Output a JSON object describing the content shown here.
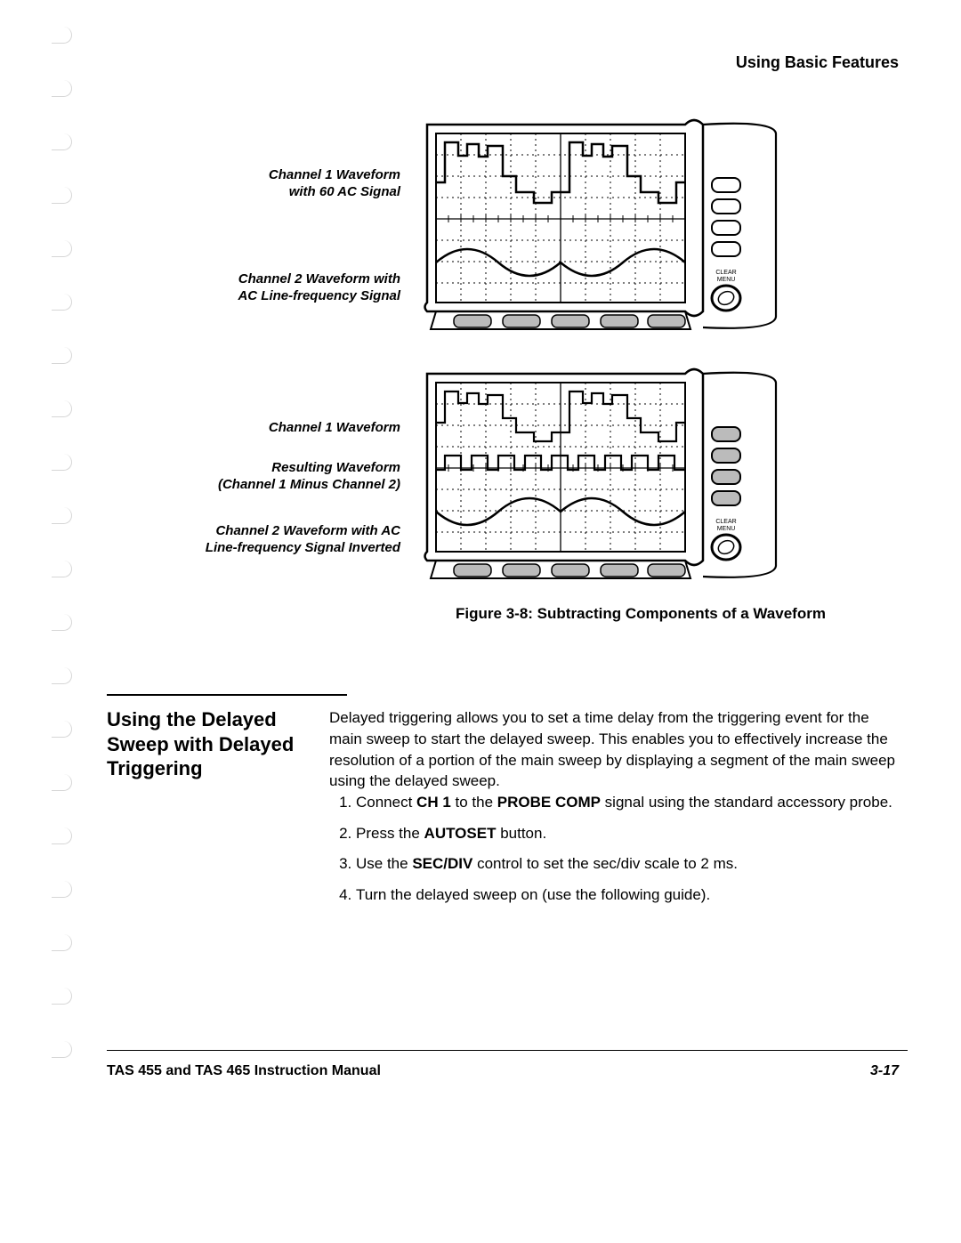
{
  "header": "Using Basic Features",
  "labels": {
    "l1": "Channel 1 Waveform\nwith 60 AC Signal",
    "l2": "Channel 2 Waveform with\nAC Line-frequency Signal",
    "l3": "Channel 1 Waveform",
    "l4": "Resulting Waveform\n(Channel 1 Minus Channel 2)",
    "l5": "Channel 2 Waveform with AC\nLine-frequency Signal Inverted"
  },
  "figure_caption": "Figure 3-8: Subtracting Components of a Waveform",
  "section_title": "Using the Delayed Sweep with Delayed Triggering",
  "paragraph": "Delayed triggering allows you to set a time delay from the triggering event for the main sweep to start the delayed sweep. This enables you to effectively increase the resolution of a portion of the main sweep by displaying a segment of the main sweep using the delayed sweep.",
  "steps": {
    "s1a": "Connect ",
    "s1b": "CH 1",
    "s1c": " to the ",
    "s1d": "PROBE COMP",
    "s1e": " signal using the standard accessory probe.",
    "s2a": "Press the ",
    "s2b": "AUTOSET",
    "s2c": " button.",
    "s3a": "Use the ",
    "s3b": "SEC/DIV",
    "s3c": " control to set the sec/div scale to 2 ms.",
    "s4": "Turn the delayed sweep on (use the following guide)."
  },
  "footer_left": "TAS 455 and TAS 465 Instruction Manual",
  "footer_right": "3-17",
  "scope": {
    "clear_menu": "CLEAR\nMENU"
  }
}
